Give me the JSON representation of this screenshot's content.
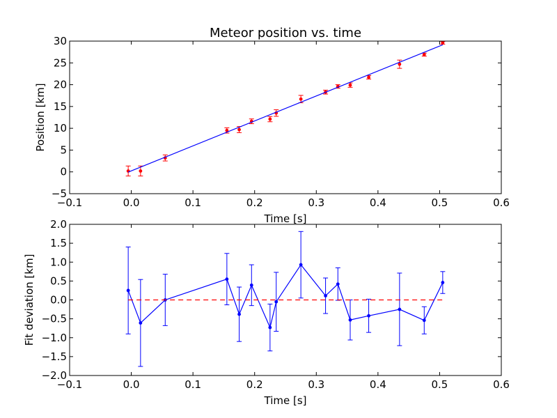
{
  "chart_data": [
    {
      "type": "scatter",
      "title": "Meteor position vs. time",
      "xlabel": "Time [s]",
      "ylabel": "Position [km]",
      "xlim": [
        -0.1,
        0.6
      ],
      "ylim": [
        -5,
        30
      ],
      "x_ticks": [
        -0.1,
        0.0,
        0.1,
        0.2,
        0.3,
        0.4,
        0.5,
        0.6
      ],
      "x_tick_labels": [
        "−0.1",
        "0.0",
        "0.1",
        "0.2",
        "0.3",
        "0.4",
        "0.5",
        "0.6"
      ],
      "y_ticks": [
        -5,
        0,
        5,
        10,
        15,
        20,
        25,
        30
      ],
      "y_tick_labels": [
        "−5",
        "0",
        "5",
        "10",
        "15",
        "20",
        "25",
        "30"
      ],
      "grid": false,
      "series": [
        {
          "kind": "errorbar",
          "color": "#ff0000",
          "x": [
            -0.005,
            0.015,
            0.055,
            0.155,
            0.175,
            0.195,
            0.225,
            0.235,
            0.275,
            0.315,
            0.335,
            0.355,
            0.385,
            0.435,
            0.475,
            0.505
          ],
          "y": [
            0.2,
            0.2,
            3.2,
            9.5,
            9.7,
            11.6,
            12.1,
            13.5,
            16.7,
            18.3,
            19.6,
            19.9,
            21.7,
            24.7,
            26.9,
            29.6
          ],
          "yerr": [
            1.15,
            1.15,
            0.7,
            0.6,
            0.7,
            0.55,
            0.6,
            0.75,
            0.85,
            0.45,
            0.4,
            0.5,
            0.4,
            0.95,
            0.35,
            0.3
          ]
        },
        {
          "kind": "line",
          "color": "#0000ff",
          "x": [
            -0.005,
            0.505
          ],
          "y": [
            -0.05,
            29.15
          ]
        }
      ]
    },
    {
      "type": "line",
      "title": "",
      "xlabel": "Time [s]",
      "ylabel": "Fit deviation [km]",
      "xlim": [
        -0.1,
        0.6
      ],
      "ylim": [
        -2.0,
        2.0
      ],
      "x_ticks": [
        -0.1,
        0.0,
        0.1,
        0.2,
        0.3,
        0.4,
        0.5,
        0.6
      ],
      "x_tick_labels": [
        "−0.1",
        "0.0",
        "0.1",
        "0.2",
        "0.3",
        "0.4",
        "0.5",
        "0.6"
      ],
      "y_ticks": [
        -2.0,
        -1.5,
        -1.0,
        -0.5,
        0.0,
        0.5,
        1.0,
        1.5,
        2.0
      ],
      "y_tick_labels": [
        "−2.0",
        "−1.5",
        "−1.0",
        "−0.5",
        "0.0",
        "0.5",
        "1.0",
        "1.5",
        "2.0"
      ],
      "grid": false,
      "series": [
        {
          "kind": "errorbar-line",
          "color": "#0000ff",
          "x": [
            -0.005,
            0.015,
            0.055,
            0.155,
            0.175,
            0.195,
            0.225,
            0.235,
            0.275,
            0.315,
            0.335,
            0.355,
            0.385,
            0.435,
            0.475,
            0.505
          ],
          "y": [
            0.25,
            -0.61,
            0.0,
            0.55,
            -0.38,
            0.39,
            -0.73,
            -0.05,
            0.93,
            0.11,
            0.42,
            -0.53,
            -0.42,
            -0.25,
            -0.54,
            0.46
          ],
          "yerr": [
            1.15,
            1.15,
            0.68,
            0.68,
            0.72,
            0.54,
            0.62,
            0.78,
            0.88,
            0.47,
            0.43,
            0.53,
            0.44,
            0.96,
            0.36,
            0.29
          ]
        },
        {
          "kind": "dashed-line",
          "color": "#ff0000",
          "x": [
            -0.005,
            0.505
          ],
          "y": [
            0.0,
            0.0
          ]
        }
      ]
    }
  ]
}
